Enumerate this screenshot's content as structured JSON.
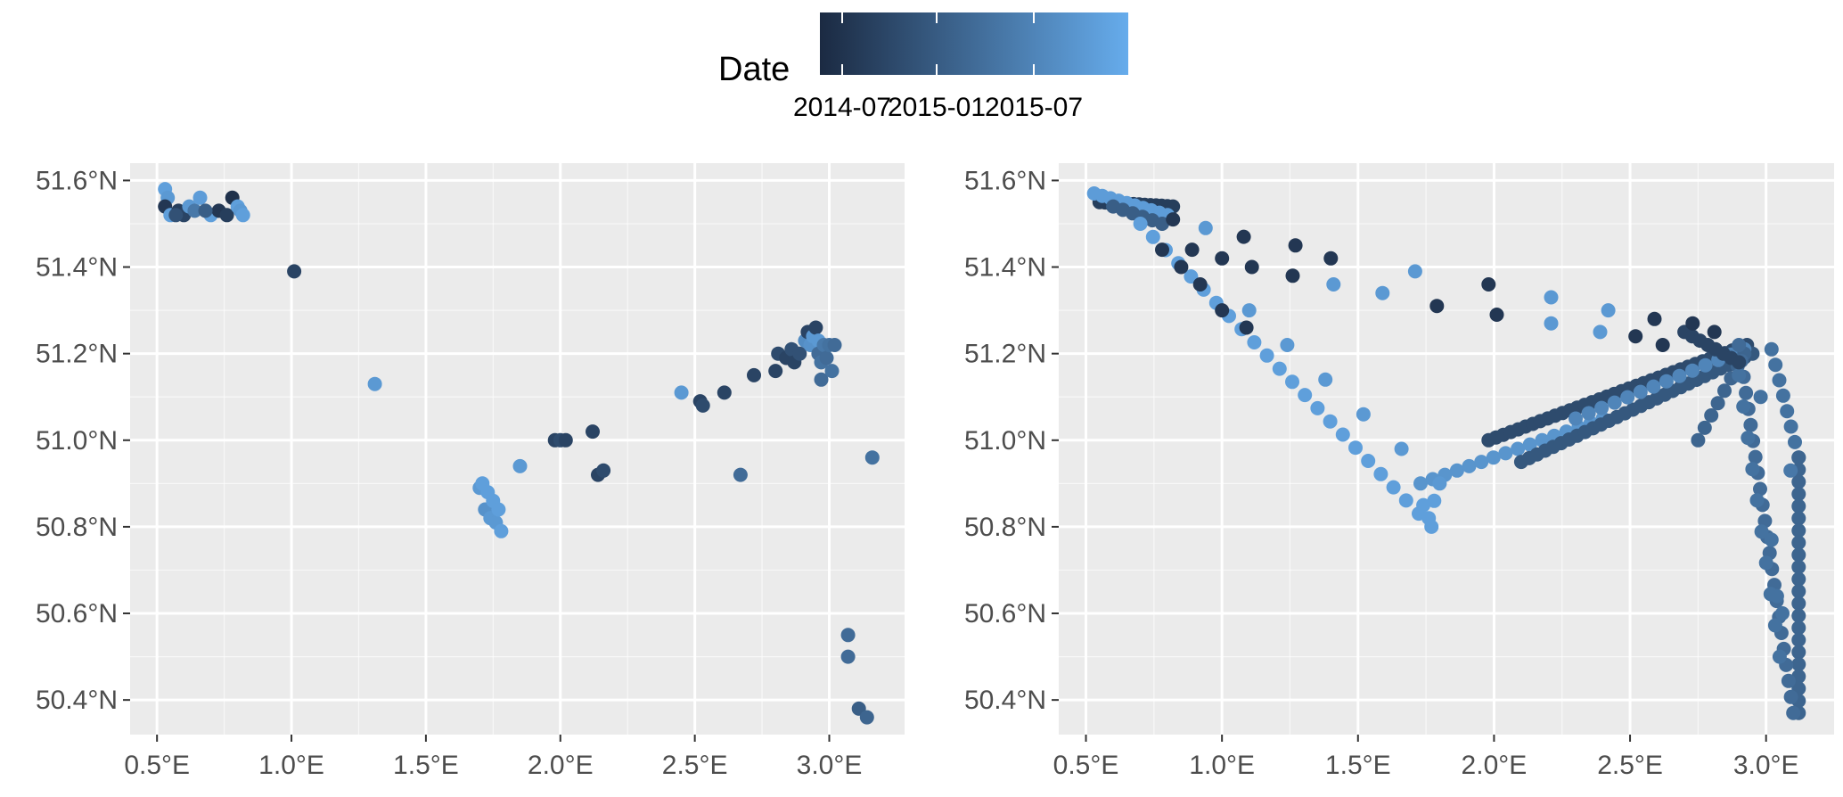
{
  "legend": {
    "title": "Date",
    "labels": [
      "2014-07",
      "2015-01",
      "2015-07"
    ],
    "colors": {
      "low": "#1b2a42",
      "high": "#66acec"
    }
  },
  "theme": {
    "panel_background": "#ebebeb",
    "grid": "#ffffff",
    "tick_text": "#4d4d4d"
  },
  "chart_data": [
    {
      "type": "scatter",
      "title": "",
      "xlabel": "",
      "ylabel": "",
      "xlim": [
        0.4,
        3.28
      ],
      "ylim": [
        50.32,
        51.64
      ],
      "xticks": [
        0.5,
        1.0,
        1.5,
        2.0,
        2.5,
        3.0
      ],
      "xtick_labels": [
        "0.5°E",
        "1.0°E",
        "1.5°E",
        "2.0°E",
        "2.5°E",
        "3.0°E"
      ],
      "yticks": [
        50.4,
        50.6,
        50.8,
        51.0,
        51.2,
        51.4,
        51.6
      ],
      "ytick_labels": [
        "50.4°N",
        "50.6°N",
        "50.8°N",
        "51.0°N",
        "51.2°N",
        "51.4°N",
        "51.6°N"
      ],
      "grid": true,
      "color_scale": "date",
      "points": [
        {
          "x": 0.53,
          "y": 51.58,
          "c": 0.9
        },
        {
          "x": 0.54,
          "y": 51.56,
          "c": 0.85
        },
        {
          "x": 0.53,
          "y": 51.54,
          "c": 0.1
        },
        {
          "x": 0.55,
          "y": 51.52,
          "c": 0.9
        },
        {
          "x": 0.58,
          "y": 51.53,
          "c": 0.15
        },
        {
          "x": 0.6,
          "y": 51.52,
          "c": 0.2
        },
        {
          "x": 0.62,
          "y": 51.54,
          "c": 0.85
        },
        {
          "x": 0.64,
          "y": 51.53,
          "c": 0.6
        },
        {
          "x": 0.66,
          "y": 51.56,
          "c": 0.88
        },
        {
          "x": 0.7,
          "y": 51.52,
          "c": 0.9
        },
        {
          "x": 0.73,
          "y": 51.53,
          "c": 0.1
        },
        {
          "x": 0.76,
          "y": 51.52,
          "c": 0.15
        },
        {
          "x": 0.78,
          "y": 51.56,
          "c": 0.05
        },
        {
          "x": 0.8,
          "y": 51.54,
          "c": 0.9
        },
        {
          "x": 0.81,
          "y": 51.53,
          "c": 0.85
        },
        {
          "x": 0.82,
          "y": 51.52,
          "c": 0.9
        },
        {
          "x": 0.57,
          "y": 51.52,
          "c": 0.3
        },
        {
          "x": 0.68,
          "y": 51.53,
          "c": 0.4
        },
        {
          "x": 1.01,
          "y": 51.39,
          "c": 0.2
        },
        {
          "x": 1.31,
          "y": 51.13,
          "c": 0.85
        },
        {
          "x": 1.7,
          "y": 50.89,
          "c": 0.85
        },
        {
          "x": 1.71,
          "y": 50.9,
          "c": 0.9
        },
        {
          "x": 1.72,
          "y": 50.84,
          "c": 0.8
        },
        {
          "x": 1.73,
          "y": 50.88,
          "c": 0.9
        },
        {
          "x": 1.74,
          "y": 50.82,
          "c": 0.85
        },
        {
          "x": 1.75,
          "y": 50.86,
          "c": 0.9
        },
        {
          "x": 1.76,
          "y": 50.81,
          "c": 0.85
        },
        {
          "x": 1.77,
          "y": 50.84,
          "c": 0.9
        },
        {
          "x": 1.78,
          "y": 50.79,
          "c": 0.9
        },
        {
          "x": 1.85,
          "y": 50.94,
          "c": 0.85
        },
        {
          "x": 1.98,
          "y": 51.0,
          "c": 0.2
        },
        {
          "x": 2.0,
          "y": 51.0,
          "c": 0.25
        },
        {
          "x": 2.02,
          "y": 51.0,
          "c": 0.2
        },
        {
          "x": 2.12,
          "y": 51.02,
          "c": 0.2
        },
        {
          "x": 2.14,
          "y": 50.92,
          "c": 0.2
        },
        {
          "x": 2.16,
          "y": 50.93,
          "c": 0.25
        },
        {
          "x": 2.45,
          "y": 51.11,
          "c": 0.85
        },
        {
          "x": 2.52,
          "y": 51.09,
          "c": 0.2
        },
        {
          "x": 2.53,
          "y": 51.08,
          "c": 0.25
        },
        {
          "x": 2.61,
          "y": 51.11,
          "c": 0.2
        },
        {
          "x": 2.67,
          "y": 50.92,
          "c": 0.5
        },
        {
          "x": 2.72,
          "y": 51.15,
          "c": 0.2
        },
        {
          "x": 2.8,
          "y": 51.16,
          "c": 0.2
        },
        {
          "x": 2.81,
          "y": 51.2,
          "c": 0.25
        },
        {
          "x": 2.84,
          "y": 51.19,
          "c": 0.2
        },
        {
          "x": 2.86,
          "y": 51.21,
          "c": 0.3
        },
        {
          "x": 2.87,
          "y": 51.18,
          "c": 0.2
        },
        {
          "x": 2.89,
          "y": 51.2,
          "c": 0.3
        },
        {
          "x": 2.91,
          "y": 51.23,
          "c": 0.75
        },
        {
          "x": 2.92,
          "y": 51.25,
          "c": 0.2
        },
        {
          "x": 2.93,
          "y": 51.22,
          "c": 0.8
        },
        {
          "x": 2.94,
          "y": 51.24,
          "c": 0.85
        },
        {
          "x": 2.95,
          "y": 51.26,
          "c": 0.2
        },
        {
          "x": 2.96,
          "y": 51.23,
          "c": 0.85
        },
        {
          "x": 2.96,
          "y": 51.2,
          "c": 0.5
        },
        {
          "x": 2.97,
          "y": 51.18,
          "c": 0.55
        },
        {
          "x": 2.97,
          "y": 51.14,
          "c": 0.5
        },
        {
          "x": 2.98,
          "y": 51.22,
          "c": 0.6
        },
        {
          "x": 2.99,
          "y": 51.19,
          "c": 0.5
        },
        {
          "x": 3.0,
          "y": 51.22,
          "c": 0.55
        },
        {
          "x": 3.01,
          "y": 51.16,
          "c": 0.55
        },
        {
          "x": 3.02,
          "y": 51.22,
          "c": 0.5
        },
        {
          "x": 3.07,
          "y": 50.55,
          "c": 0.5
        },
        {
          "x": 3.07,
          "y": 50.5,
          "c": 0.5
        },
        {
          "x": 3.11,
          "y": 50.38,
          "c": 0.4
        },
        {
          "x": 3.14,
          "y": 50.36,
          "c": 0.45
        },
        {
          "x": 3.16,
          "y": 50.96,
          "c": 0.55
        }
      ]
    },
    {
      "type": "scatter",
      "title": "",
      "xlabel": "",
      "ylabel": "",
      "xlim": [
        0.4,
        3.25
      ],
      "ylim": [
        50.32,
        51.64
      ],
      "xticks": [
        0.5,
        1.0,
        1.5,
        2.0,
        2.5,
        3.0
      ],
      "xtick_labels": [
        "0.5°E",
        "1.0°E",
        "1.5°E",
        "2.0°E",
        "2.5°E",
        "3.0°E"
      ],
      "yticks": [
        50.4,
        50.6,
        50.8,
        51.0,
        51.2,
        51.4,
        51.6
      ],
      "ytick_labels": [
        "50.4°N",
        "50.6°N",
        "50.8°N",
        "51.0°N",
        "51.2°N",
        "51.4°N",
        "51.6°N"
      ],
      "grid": true,
      "color_scale": "date",
      "tracks": [
        {
          "from": [
            0.55,
            51.55
          ],
          "to": [
            0.82,
            51.54
          ],
          "n": 14,
          "c": 0.15
        },
        {
          "from": [
            0.53,
            51.57
          ],
          "to": [
            0.8,
            51.52
          ],
          "n": 10,
          "c": 0.88
        },
        {
          "from": [
            0.6,
            51.54
          ],
          "to": [
            0.78,
            51.5
          ],
          "n": 6,
          "c": 0.4
        },
        {
          "from": [
            0.7,
            51.5
          ],
          "to": [
            1.77,
            50.8
          ],
          "n": 24,
          "c": 0.9
        },
        {
          "from": [
            1.73,
            50.9
          ],
          "to": [
            2.4,
            51.05
          ],
          "n": 16,
          "c": 0.82
        },
        {
          "from": [
            1.98,
            51.0
          ],
          "to": [
            2.93,
            51.22
          ],
          "n": 36,
          "c": 0.25
        },
        {
          "from": [
            2.1,
            50.95
          ],
          "to": [
            2.95,
            51.2
          ],
          "n": 30,
          "c": 0.35
        },
        {
          "from": [
            2.3,
            51.05
          ],
          "to": [
            2.92,
            51.21
          ],
          "n": 14,
          "c": 0.7
        },
        {
          "from": [
            2.75,
            51.0
          ],
          "to": [
            2.92,
            51.2
          ],
          "n": 8,
          "c": 0.45
        },
        {
          "from": [
            3.02,
            51.21
          ],
          "to": [
            3.12,
            50.96
          ],
          "n": 8,
          "c": 0.55
        },
        {
          "from": [
            3.12,
            50.96
          ],
          "to": [
            3.12,
            50.37
          ],
          "n": 22,
          "c": 0.45
        },
        {
          "from": [
            2.9,
            51.22
          ],
          "to": [
            3.1,
            50.37
          ],
          "n": 24,
          "c": 0.5
        },
        {
          "from": [
            2.9,
            51.15
          ],
          "to": [
            3.05,
            50.5
          ],
          "n": 10,
          "c": 0.55
        },
        {
          "from": [
            2.7,
            51.25
          ],
          "to": [
            2.9,
            51.18
          ],
          "n": 8,
          "c": 0.2
        },
        {
          "from": [
            1.1,
            51.3
          ],
          "to": [
            1.8,
            50.9
          ],
          "n": 6,
          "c": 0.85
        }
      ],
      "points": [
        {
          "x": 0.82,
          "y": 51.51,
          "c": 0.1
        },
        {
          "x": 0.94,
          "y": 51.49,
          "c": 0.85
        },
        {
          "x": 1.08,
          "y": 51.47,
          "c": 0.1
        },
        {
          "x": 0.78,
          "y": 51.44,
          "c": 0.1
        },
        {
          "x": 0.89,
          "y": 51.44,
          "c": 0.1
        },
        {
          "x": 1.0,
          "y": 51.42,
          "c": 0.1
        },
        {
          "x": 1.11,
          "y": 51.4,
          "c": 0.1
        },
        {
          "x": 1.27,
          "y": 51.45,
          "c": 0.1
        },
        {
          "x": 1.4,
          "y": 51.42,
          "c": 0.1
        },
        {
          "x": 0.85,
          "y": 51.4,
          "c": 0.1
        },
        {
          "x": 0.92,
          "y": 51.36,
          "c": 0.1
        },
        {
          "x": 1.26,
          "y": 51.38,
          "c": 0.1
        },
        {
          "x": 1.41,
          "y": 51.36,
          "c": 0.85
        },
        {
          "x": 1.59,
          "y": 51.34,
          "c": 0.85
        },
        {
          "x": 1.71,
          "y": 51.39,
          "c": 0.85
        },
        {
          "x": 1.0,
          "y": 51.3,
          "c": 0.1
        },
        {
          "x": 1.09,
          "y": 51.26,
          "c": 0.1
        },
        {
          "x": 1.79,
          "y": 51.31,
          "c": 0.1
        },
        {
          "x": 1.98,
          "y": 51.36,
          "c": 0.1
        },
        {
          "x": 2.01,
          "y": 51.29,
          "c": 0.1
        },
        {
          "x": 2.21,
          "y": 51.33,
          "c": 0.85
        },
        {
          "x": 2.21,
          "y": 51.27,
          "c": 0.85
        },
        {
          "x": 2.42,
          "y": 51.3,
          "c": 0.85
        },
        {
          "x": 2.39,
          "y": 51.25,
          "c": 0.85
        },
        {
          "x": 2.52,
          "y": 51.24,
          "c": 0.1
        },
        {
          "x": 2.59,
          "y": 51.28,
          "c": 0.1
        },
        {
          "x": 2.62,
          "y": 51.22,
          "c": 0.1
        },
        {
          "x": 2.73,
          "y": 51.27,
          "c": 0.1
        },
        {
          "x": 2.81,
          "y": 51.25,
          "c": 0.1
        },
        {
          "x": 1.74,
          "y": 50.85,
          "c": 0.9
        },
        {
          "x": 1.76,
          "y": 50.82,
          "c": 0.9
        },
        {
          "x": 1.78,
          "y": 50.86,
          "c": 0.9
        },
        {
          "x": 2.98,
          "y": 51.1,
          "c": 0.55
        },
        {
          "x": 3.02,
          "y": 50.77,
          "c": 0.55
        },
        {
          "x": 3.04,
          "y": 50.64,
          "c": 0.55
        },
        {
          "x": 3.06,
          "y": 50.6,
          "c": 0.55
        },
        {
          "x": 3.09,
          "y": 50.93,
          "c": 0.6
        }
      ]
    }
  ]
}
